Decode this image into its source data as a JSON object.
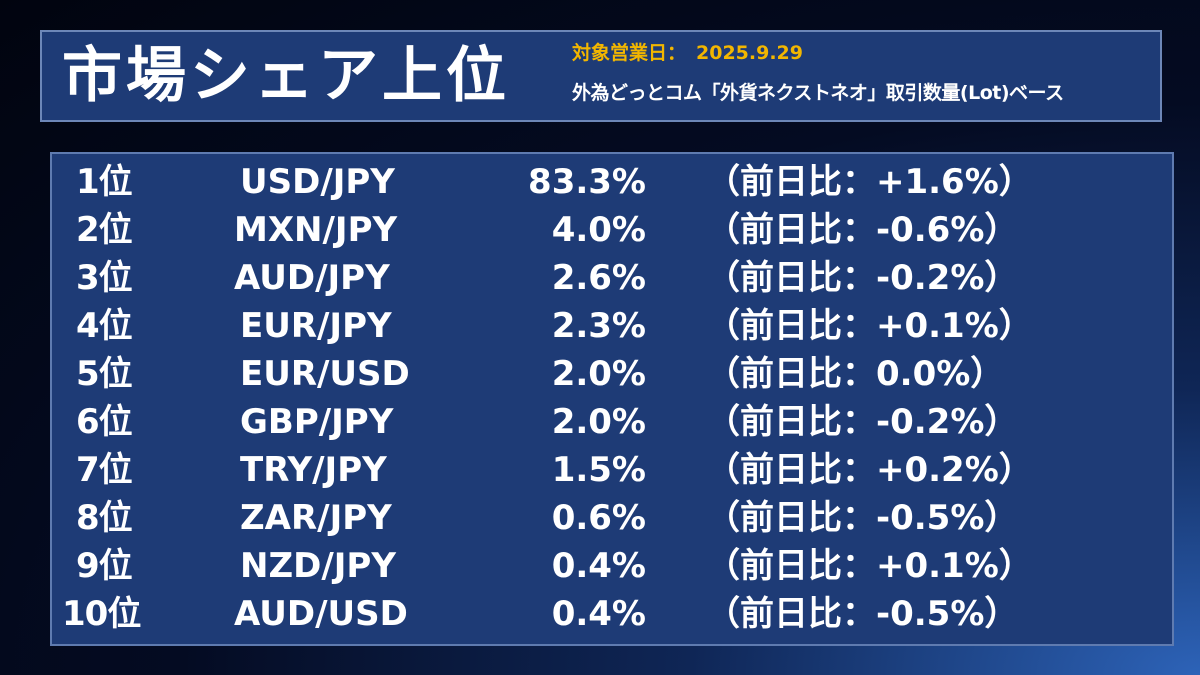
{
  "header": {
    "title": "市場シェア上位",
    "date_label": "対象営業日：",
    "date_value": "2025.9.29",
    "basis": "外為どっとコム「外貨ネクストネオ」取引数量(Lot)ベース"
  },
  "rows": [
    {
      "rank": "1位",
      "pair": "USD/JPY",
      "share": "83.3%",
      "change": "（前日比：+1.6%）"
    },
    {
      "rank": "2位",
      "pair": "MXN/JPY",
      "share": "4.0%",
      "change": "（前日比：-0.6%）"
    },
    {
      "rank": "3位",
      "pair": "AUD/JPY",
      "share": "2.6%",
      "change": "（前日比：-0.2%）"
    },
    {
      "rank": "4位",
      "pair": "EUR/JPY",
      "share": "2.3%",
      "change": "（前日比：+0.1%）"
    },
    {
      "rank": "5位",
      "pair": "EUR/USD",
      "share": "2.0%",
      "change": "（前日比：0.0%）"
    },
    {
      "rank": "6位",
      "pair": "GBP/JPY",
      "share": "2.0%",
      "change": "（前日比：-0.2%）"
    },
    {
      "rank": "7位",
      "pair": "TRY/JPY",
      "share": "1.5%",
      "change": "（前日比：+0.2%）"
    },
    {
      "rank": "8位",
      "pair": "ZAR/JPY",
      "share": "0.6%",
      "change": "（前日比：-0.5%）"
    },
    {
      "rank": "9位",
      "pair": "NZD/JPY",
      "share": "0.4%",
      "change": "（前日比：+0.1%）"
    },
    {
      "rank": "10位",
      "pair": "AUD/USD",
      "share": "0.4%",
      "change": "（前日比：-0.5%）"
    }
  ],
  "colors": {
    "panel": "#1e3b76",
    "accent": "#f2b600",
    "text": "#ffffff"
  }
}
